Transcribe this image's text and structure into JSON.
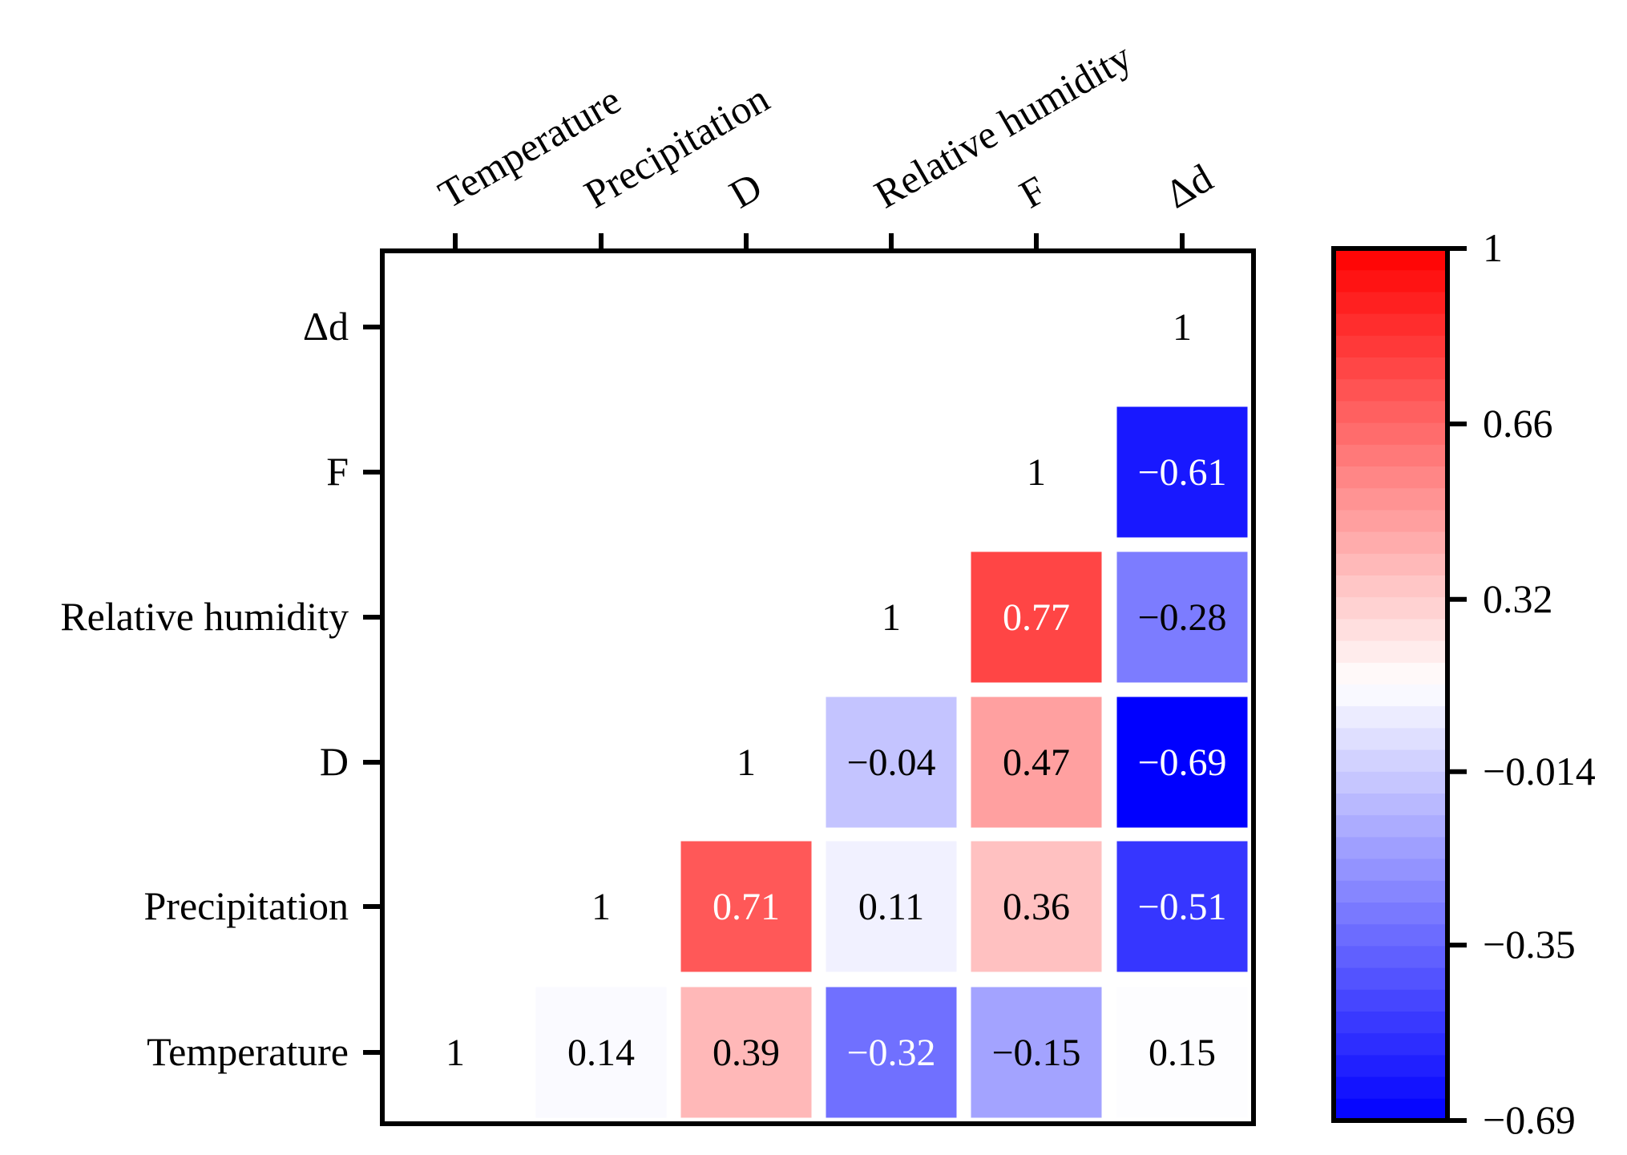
{
  "chart_data": {
    "type": "heatmap",
    "title": "",
    "xlabel": "",
    "ylabel": "",
    "variables": [
      "Temperature",
      "Precipitation",
      "D",
      "Relative humidity",
      "F",
      "Δd"
    ],
    "x_categories": [
      "Temperature",
      "Precipitation",
      "D",
      "Relative humidity",
      "F",
      "Δd"
    ],
    "y_categories_bottom_to_top": [
      "Temperature",
      "Precipitation",
      "D",
      "Relative humidity",
      "F",
      "Δd"
    ],
    "layout": "lower-triangle, diagonal shown as labels only",
    "cells": [
      {
        "row": "Temperature",
        "col": "Temperature",
        "value": 1,
        "label": "1"
      },
      {
        "row": "Temperature",
        "col": "Precipitation",
        "value": 0.14,
        "label": "0.14"
      },
      {
        "row": "Temperature",
        "col": "D",
        "value": 0.39,
        "label": "0.39"
      },
      {
        "row": "Temperature",
        "col": "Relative humidity",
        "value": -0.32,
        "label": "−0.32"
      },
      {
        "row": "Temperature",
        "col": "F",
        "value": -0.15,
        "label": "−0.15"
      },
      {
        "row": "Temperature",
        "col": "Δd",
        "value": 0.15,
        "label": "0.15"
      },
      {
        "row": "Precipitation",
        "col": "Precipitation",
        "value": 1,
        "label": "1"
      },
      {
        "row": "Precipitation",
        "col": "D",
        "value": 0.71,
        "label": "0.71"
      },
      {
        "row": "Precipitation",
        "col": "Relative humidity",
        "value": 0.11,
        "label": "0.11"
      },
      {
        "row": "Precipitation",
        "col": "F",
        "value": 0.36,
        "label": "0.36"
      },
      {
        "row": "Precipitation",
        "col": "Δd",
        "value": -0.51,
        "label": "−0.51"
      },
      {
        "row": "D",
        "col": "D",
        "value": 1,
        "label": "1"
      },
      {
        "row": "D",
        "col": "Relative humidity",
        "value": -0.04,
        "label": "−0.04"
      },
      {
        "row": "D",
        "col": "F",
        "value": 0.47,
        "label": "0.47"
      },
      {
        "row": "D",
        "col": "Δd",
        "value": -0.69,
        "label": "−0.69"
      },
      {
        "row": "Relative humidity",
        "col": "Relative humidity",
        "value": 1,
        "label": "1"
      },
      {
        "row": "Relative humidity",
        "col": "F",
        "value": 0.77,
        "label": "0.77"
      },
      {
        "row": "Relative humidity",
        "col": "Δd",
        "value": -0.28,
        "label": "−0.28"
      },
      {
        "row": "F",
        "col": "F",
        "value": 1,
        "label": "1"
      },
      {
        "row": "F",
        "col": "Δd",
        "value": -0.61,
        "label": "−0.61"
      },
      {
        "row": "Δd",
        "col": "Δd",
        "value": 1,
        "label": "1"
      }
    ],
    "colorbar": {
      "min": -0.69,
      "max": 1,
      "ticks": [
        {
          "value": 1,
          "label": "1"
        },
        {
          "value": 0.66,
          "label": "0.66"
        },
        {
          "value": 0.32,
          "label": "0.32"
        },
        {
          "value": -0.014,
          "label": "−0.014"
        },
        {
          "value": -0.35,
          "label": "−0.35"
        },
        {
          "value": -0.69,
          "label": "−0.69"
        }
      ],
      "colors": {
        "low": "#0000ff",
        "mid": "#ffffff",
        "high": "#ff0000"
      },
      "placement": "right"
    }
  }
}
